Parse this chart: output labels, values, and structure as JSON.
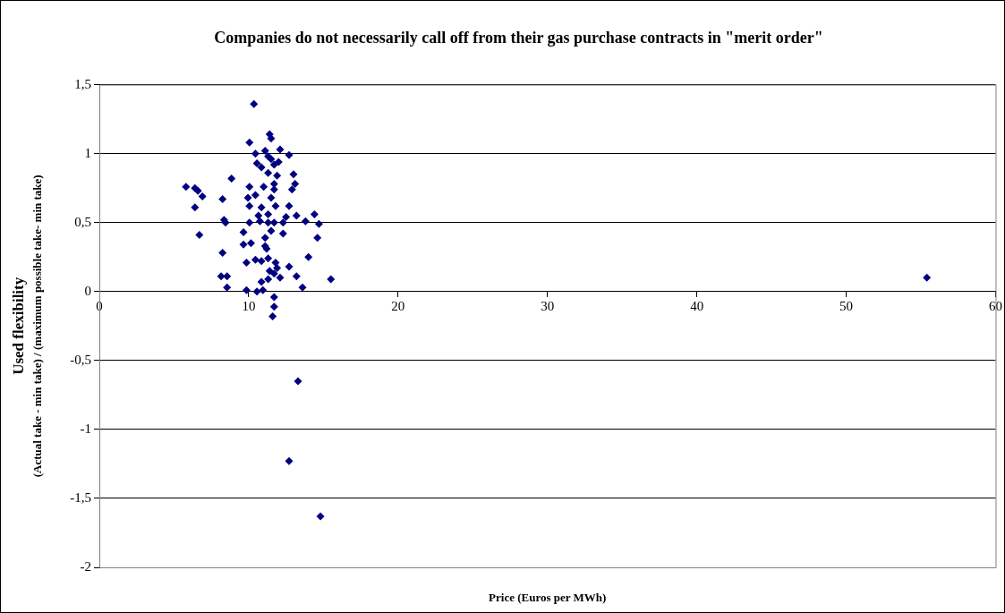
{
  "chart_data": {
    "type": "scatter",
    "title": "Companies do not necessarily call off from their gas purchase contracts in \"merit order\"",
    "xlabel": "Price (Euros per MWh)",
    "ylabel": "Used flexibility\n(Actual take - min take) / (maximum possible take- min take)",
    "series": [
      {
        "color": "#000080",
        "x": [
          10.35,
          11.4,
          11.5,
          10.05,
          12.1,
          12.7,
          10.45,
          11.1,
          11.3,
          11.5,
          10.55,
          12.0,
          10.85,
          11.7,
          13.0,
          11.9,
          11.3,
          8.85,
          5.8,
          6.4,
          6.6,
          6.9,
          10.05,
          11.0,
          11.7,
          13.1,
          12.9,
          11.7,
          9.95,
          10.45,
          11.5,
          8.25,
          6.4,
          10.05,
          10.85,
          11.8,
          12.7,
          10.65,
          11.3,
          12.5,
          13.2,
          14.4,
          8.35,
          8.45,
          10.05,
          10.75,
          11.3,
          11.7,
          12.3,
          13.8,
          14.7,
          6.7,
          9.65,
          11.5,
          12.3,
          11.1,
          14.6,
          9.65,
          10.15,
          11.1,
          11.2,
          8.25,
          14.0,
          9.85,
          10.45,
          10.85,
          11.3,
          11.8,
          12.7,
          11.9,
          11.4,
          11.7,
          8.15,
          8.55,
          12.1,
          13.2,
          15.5,
          11.3,
          10.85,
          13.6,
          8.55,
          9.85,
          10.55,
          10.95,
          11.7,
          11.7,
          11.6,
          13.3,
          12.7,
          14.8,
          55.4
        ],
        "values": [
          1.36,
          1.14,
          1.11,
          1.08,
          1.03,
          0.99,
          1.0,
          1.02,
          0.98,
          0.96,
          0.93,
          0.94,
          0.9,
          0.92,
          0.85,
          0.84,
          0.86,
          0.82,
          0.76,
          0.75,
          0.73,
          0.69,
          0.76,
          0.76,
          0.78,
          0.78,
          0.74,
          0.74,
          0.68,
          0.7,
          0.68,
          0.67,
          0.61,
          0.62,
          0.61,
          0.62,
          0.62,
          0.55,
          0.56,
          0.54,
          0.55,
          0.56,
          0.52,
          0.5,
          0.5,
          0.51,
          0.5,
          0.5,
          0.5,
          0.51,
          0.49,
          0.41,
          0.43,
          0.44,
          0.42,
          0.39,
          0.39,
          0.34,
          0.35,
          0.33,
          0.31,
          0.28,
          0.25,
          0.21,
          0.23,
          0.22,
          0.24,
          0.21,
          0.18,
          0.17,
          0.15,
          0.13,
          0.11,
          0.11,
          0.1,
          0.11,
          0.09,
          0.09,
          0.07,
          0.03,
          0.03,
          0.01,
          0.0,
          0.01,
          -0.04,
          -0.11,
          -0.18,
          -0.65,
          -1.23,
          -1.63,
          0.1
        ]
      }
    ],
    "xlim": [
      0,
      60
    ],
    "xticks": [
      0,
      10,
      20,
      30,
      40,
      50,
      60
    ],
    "ylim": [
      -2,
      1.5
    ],
    "yticks": [
      {
        "value": -2,
        "label": "-2"
      },
      {
        "value": -1.5,
        "label": "-1,5"
      },
      {
        "value": -1,
        "label": "-1"
      },
      {
        "value": -0.5,
        "label": "-0,5"
      },
      {
        "value": 0,
        "label": "0"
      },
      {
        "value": 0.5,
        "label": "0,5"
      },
      {
        "value": 1,
        "label": "1"
      },
      {
        "value": 1.5,
        "label": "1,5"
      }
    ],
    "grid": "y",
    "legend": false,
    "marker": "diamond"
  }
}
